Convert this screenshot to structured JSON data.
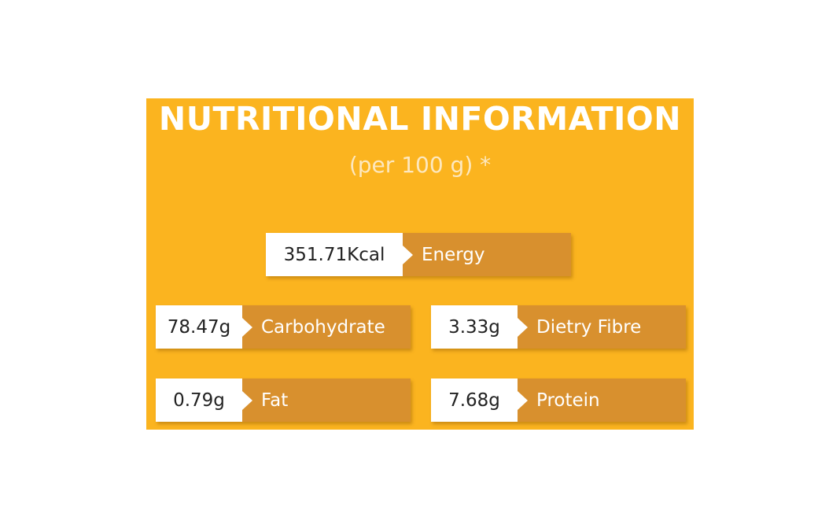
{
  "header": {
    "title": "NUTRITIONAL INFORMATION",
    "subtitle": "(per 100 g) *"
  },
  "items": [
    {
      "value": "351.71Kcal",
      "label": "Energy"
    },
    {
      "value": "78.47g",
      "label": "Carbohydrate"
    },
    {
      "value": "3.33g",
      "label": "Dietry Fibre"
    },
    {
      "value": "0.79g",
      "label": "Fat"
    },
    {
      "value": "7.68g",
      "label": "Protein"
    }
  ]
}
